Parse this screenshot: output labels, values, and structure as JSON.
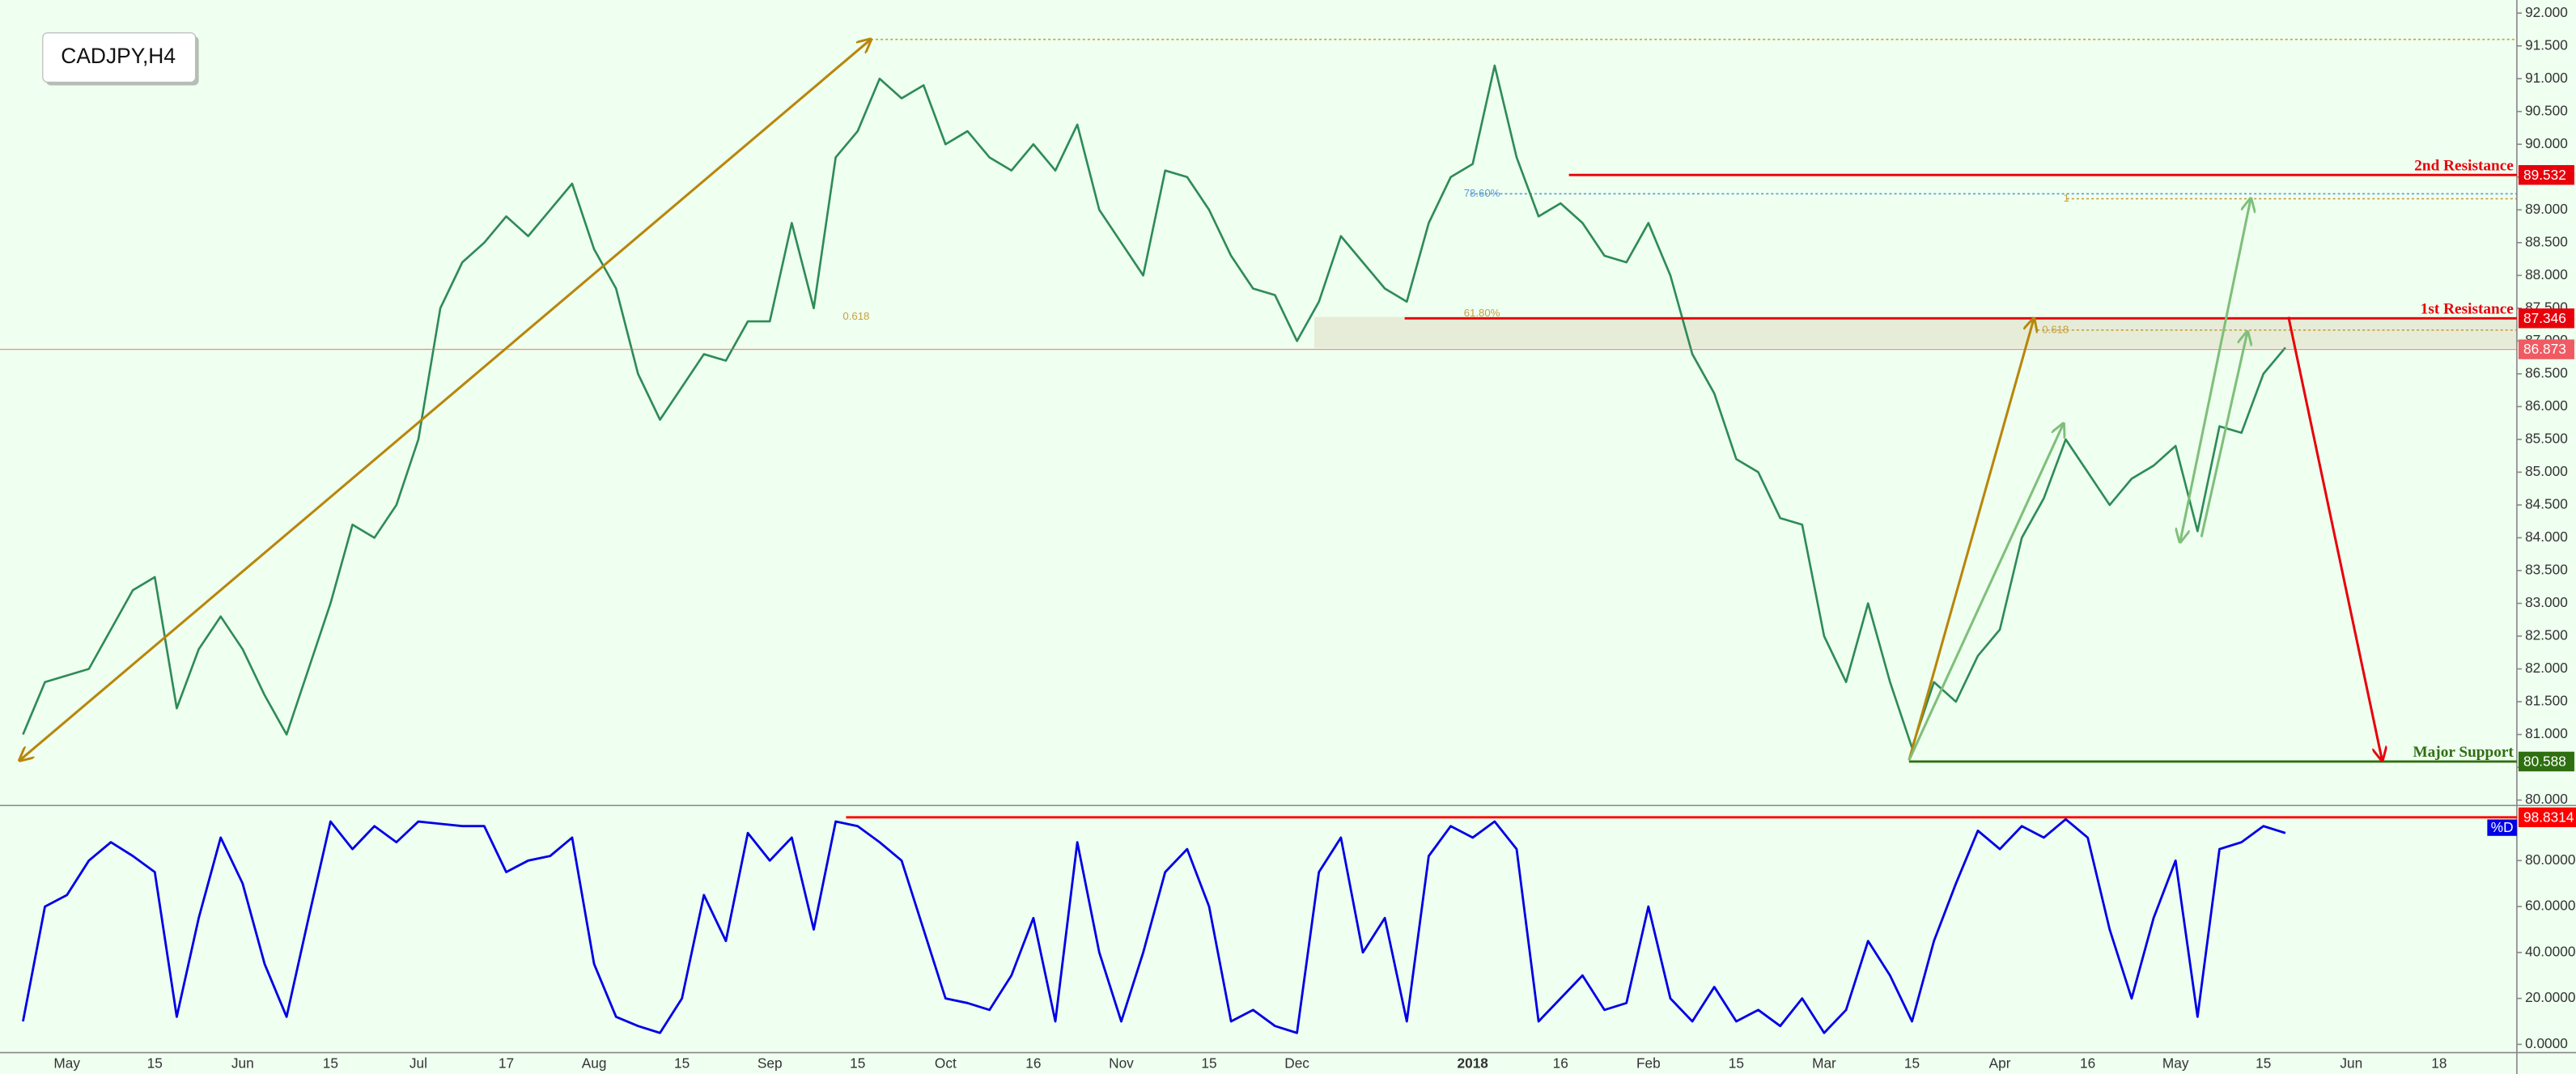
{
  "chart_data": [
    {
      "type": "line",
      "title": "CADJPY,H4",
      "color": "#2e8b57",
      "values": [
        81.0,
        81.8,
        81.9,
        82.0,
        82.6,
        83.2,
        83.4,
        81.4,
        82.3,
        82.8,
        82.3,
        81.6,
        81.0,
        82.0,
        83.0,
        84.2,
        84.0,
        84.5,
        85.5,
        87.5,
        88.2,
        88.5,
        88.9,
        88.6,
        89.0,
        89.4,
        88.4,
        87.8,
        86.5,
        85.8,
        86.3,
        86.8,
        86.7,
        87.3,
        87.3,
        88.8,
        87.5,
        89.8,
        90.2,
        91.0,
        90.7,
        90.9,
        90.0,
        90.2,
        89.8,
        89.6,
        90.0,
        89.6,
        90.3,
        89.0,
        88.5,
        88.0,
        89.6,
        89.5,
        89.0,
        88.3,
        87.8,
        87.7,
        87.0,
        87.6,
        88.6,
        88.2,
        87.8,
        87.6,
        88.8,
        89.5,
        89.7,
        91.2,
        89.8,
        88.9,
        89.1,
        88.8,
        88.3,
        88.2,
        88.8,
        88.0,
        86.8,
        86.2,
        85.2,
        85.0,
        84.3,
        84.2,
        82.5,
        81.8,
        83.0,
        81.8,
        80.8,
        81.8,
        81.5,
        82.2,
        82.6,
        84.0,
        84.6,
        85.5,
        85.0,
        84.5,
        84.9,
        85.1,
        85.4,
        84.1,
        85.7,
        85.6,
        86.5,
        86.9,
        null,
        null,
        null,
        null,
        null,
        null,
        null,
        null,
        null
      ],
      "ylim": [
        79.93,
        92.2
      ],
      "yticks": [
        {
          "value": 80,
          "label": "80.000"
        },
        {
          "value": 80.5,
          "label": "80.500"
        },
        {
          "value": 81,
          "label": "81.000"
        },
        {
          "value": 81.5,
          "label": "81.500"
        },
        {
          "value": 82,
          "label": "82.000"
        },
        {
          "value": 82.5,
          "label": "82.500"
        },
        {
          "value": 83,
          "label": "83.000"
        },
        {
          "value": 83.5,
          "label": "83.500"
        },
        {
          "value": 84,
          "label": "84.000"
        },
        {
          "value": 84.5,
          "label": "84.500"
        },
        {
          "value": 85,
          "label": "85.000"
        },
        {
          "value": 85.5,
          "label": "85.500"
        },
        {
          "value": 86,
          "label": "86.000"
        },
        {
          "value": 86.5,
          "label": "86.500"
        },
        {
          "value": 87,
          "label": "87.000"
        },
        {
          "value": 87.5,
          "label": "87.500"
        },
        {
          "value": 88,
          "label": "88.000"
        },
        {
          "value": 88.5,
          "label": "88.500"
        },
        {
          "value": 89,
          "label": "89.000"
        },
        {
          "value": 89.5,
          "label": "89.500"
        },
        {
          "value": 90,
          "label": "90.000"
        },
        {
          "value": 90.5,
          "label": "90.500"
        },
        {
          "value": 91,
          "label": "91.000"
        },
        {
          "value": 91.5,
          "label": "91.500"
        },
        {
          "value": 92,
          "label": "92.000"
        }
      ],
      "levels": [
        {
          "label": "2nd Resistance",
          "value": 89.532,
          "color": "#e8000b"
        },
        {
          "label": "1st Resistance",
          "value": 87.346,
          "color": "#e8000b"
        },
        {
          "label": "Major Support",
          "value": 80.588,
          "color": "#2f6f12"
        }
      ],
      "current_price": {
        "value": 86.873,
        "color": "#f05a62"
      },
      "annotations": [
        "78.60%",
        "0.618",
        "61.80%",
        "0.618",
        "1"
      ]
    },
    {
      "type": "line",
      "categories": [
        null,
        null,
        "May",
        null,
        null,
        null,
        "15",
        null,
        null,
        null,
        "Jun",
        null,
        null,
        null,
        "15",
        null,
        null,
        null,
        "Jul",
        null,
        null,
        null,
        "17",
        null,
        null,
        null,
        "Aug",
        null,
        null,
        null,
        "15",
        null,
        null,
        null,
        "Sep",
        null,
        null,
        null,
        "15",
        null,
        null,
        null,
        "Oct",
        null,
        null,
        null,
        "16",
        null,
        null,
        null,
        "Nov",
        null,
        null,
        null,
        "15",
        null,
        null,
        null,
        "Dec",
        null,
        null,
        null,
        null,
        null,
        null,
        null,
        "2018",
        null,
        null,
        null,
        "16",
        null,
        null,
        null,
        "Feb",
        null,
        null,
        null,
        "15",
        null,
        null,
        null,
        "Mar",
        null,
        null,
        null,
        "15",
        null,
        null,
        null,
        "Apr",
        null,
        null,
        null,
        "16",
        null,
        null,
        null,
        "May",
        null,
        null,
        null,
        "15",
        null,
        null,
        null,
        "Jun",
        null,
        null,
        null,
        "18",
        null,
        null
      ],
      "series": [
        {
          "name": "%D",
          "color": "#0000e6",
          "values": [
            10,
            60,
            65,
            80,
            88,
            82,
            75,
            12,
            55,
            90,
            70,
            35,
            12,
            55,
            97,
            85,
            95,
            88,
            97,
            96,
            95,
            95,
            75,
            80,
            82,
            90,
            35,
            12,
            8,
            5,
            20,
            65,
            45,
            92,
            80,
            90,
            50,
            97,
            95,
            88,
            80,
            50,
            20,
            18,
            15,
            30,
            55,
            10,
            88,
            40,
            10,
            40,
            75,
            85,
            60,
            10,
            15,
            8,
            5,
            75,
            90,
            40,
            55,
            10,
            82,
            95,
            90,
            97,
            85,
            10,
            20,
            30,
            15,
            18,
            60,
            20,
            10,
            25,
            10,
            15,
            8,
            20,
            5,
            15,
            45,
            30,
            10,
            45,
            70,
            93,
            85,
            95,
            90,
            98,
            90,
            50,
            20,
            55,
            80,
            12,
            85,
            88,
            95,
            92,
            null,
            null,
            null,
            null,
            null,
            null,
            null,
            null,
            null
          ]
        }
      ],
      "ylim": [
        -3.6,
        102.9
      ],
      "yticks": [
        {
          "value": 0,
          "label": "0.0000"
        },
        {
          "value": 20,
          "label": "20.0000"
        },
        {
          "value": 40,
          "label": "40.0000"
        },
        {
          "value": 60,
          "label": "60.0000"
        },
        {
          "value": 80,
          "label": "80.0000"
        }
      ],
      "level": {
        "value": 98.8314,
        "color": "#ff0000"
      }
    }
  ]
}
